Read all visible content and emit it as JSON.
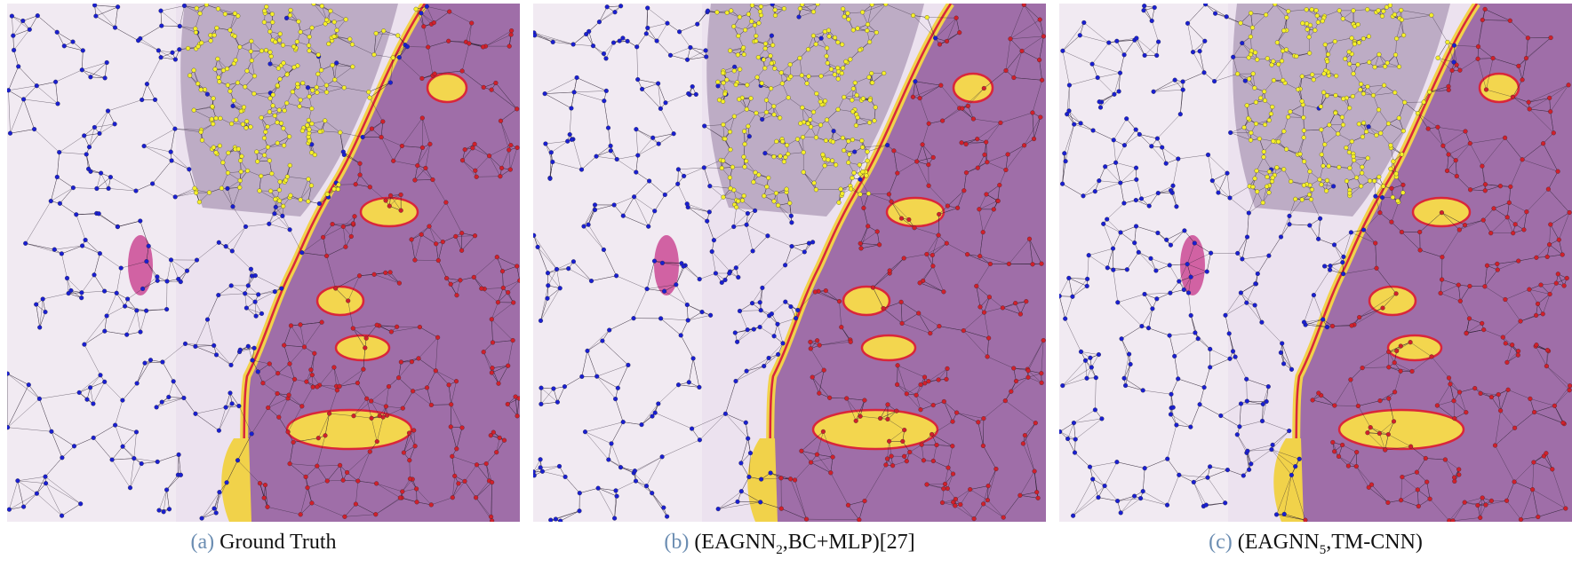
{
  "figure": {
    "panels": [
      {
        "label": "(a)",
        "caption": {
          "text": "Ground Truth"
        }
      },
      {
        "label": "(b)",
        "caption": {
          "text": "(EAGNN",
          "sub": "2",
          "rest": ",BC+MLP)[27]"
        }
      },
      {
        "label": "(c)",
        "caption": {
          "text": "(EAGNN",
          "sub": "5",
          "rest": ",TM-CNN)"
        }
      }
    ]
  }
}
